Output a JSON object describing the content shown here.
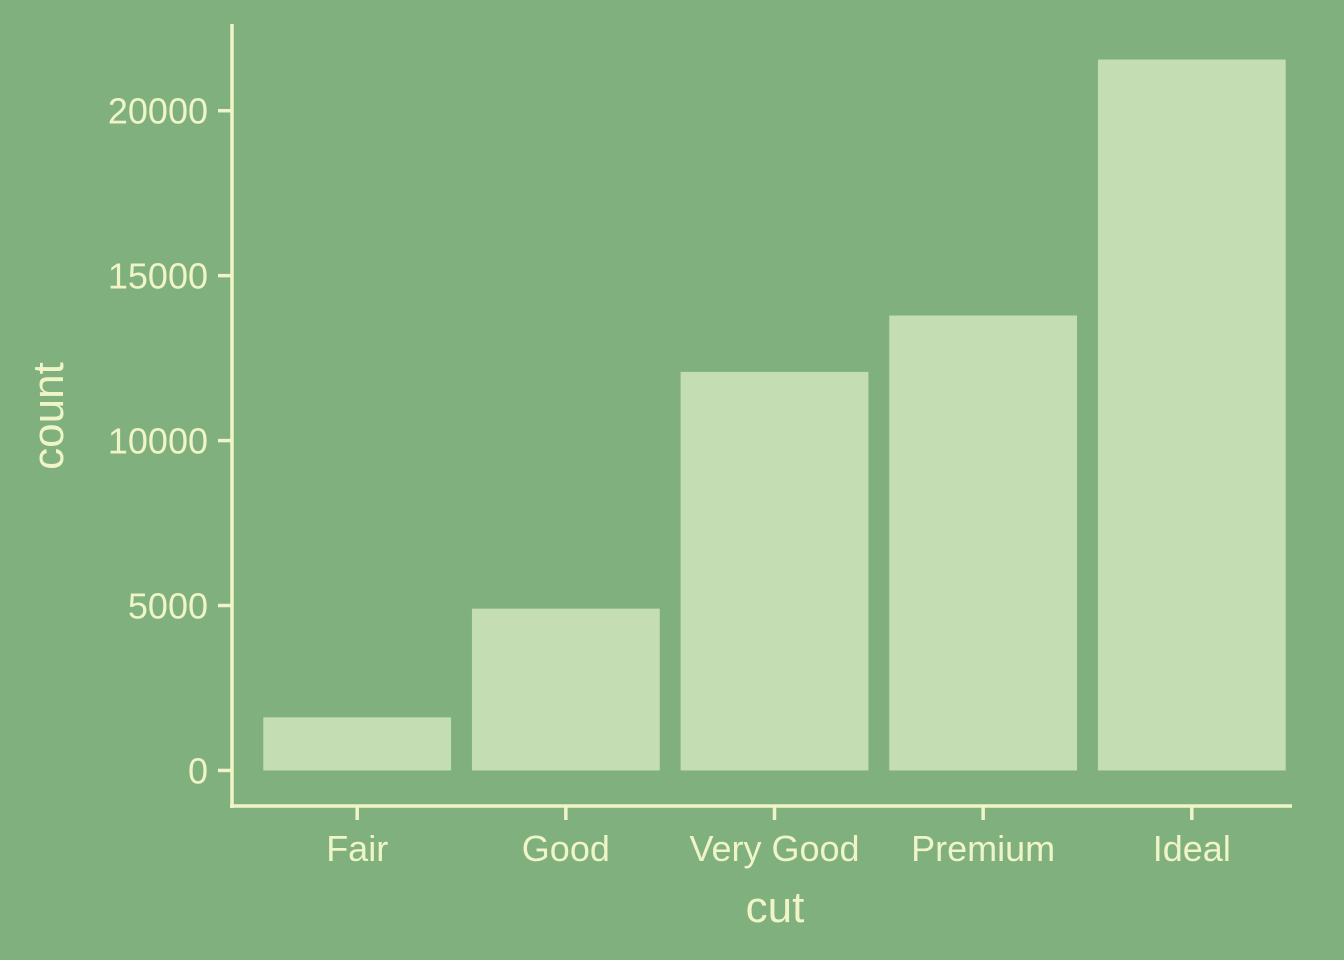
{
  "colors": {
    "background": "#7fb07d",
    "bar_fill": "#c5ddb3",
    "axis": "#f0f5c8",
    "text": "#f0f5c8"
  },
  "chart_data": {
    "type": "bar",
    "title": "",
    "xlabel": "cut",
    "ylabel": "count",
    "categories": [
      "Fair",
      "Good",
      "Very Good",
      "Premium",
      "Ideal"
    ],
    "values": [
      1610,
      4906,
      12082,
      13791,
      21551
    ],
    "yticks": [
      0,
      5000,
      10000,
      15000,
      20000
    ],
    "ylim": [
      -1077.55,
      22628.55
    ],
    "grid": false,
    "legend": "none"
  }
}
